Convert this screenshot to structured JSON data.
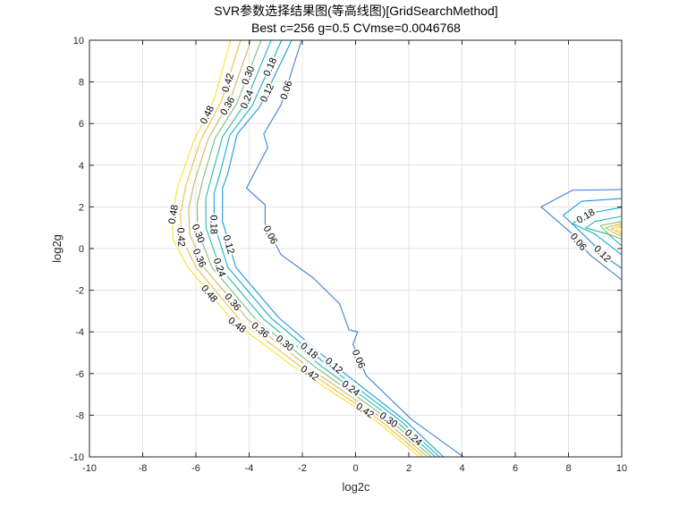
{
  "chart_data": {
    "type": "contour",
    "title": "SVR参数选择结果图(等高线图)[GridSearchMethod]",
    "subtitle": "Best c=256 g=0.5 CVmse=0.0046768",
    "xlabel": "log2c",
    "ylabel": "log2g",
    "xlim": [
      -10,
      10
    ],
    "ylim": [
      -10,
      10
    ],
    "xticks": [
      -10,
      -8,
      -6,
      -4,
      -2,
      0,
      2,
      4,
      6,
      8,
      10
    ],
    "yticks": [
      -10,
      -8,
      -6,
      -4,
      -2,
      0,
      2,
      4,
      6,
      8,
      10
    ],
    "grid": true,
    "colormap": "parula",
    "levels": [
      {
        "value": "0.06",
        "color": "#3d7fd6",
        "paths": [
          [
            [
              -2.03,
              10
            ],
            [
              -2.8,
              6.9
            ],
            [
              -3.45,
              5.5
            ],
            [
              -3.3,
              4.85
            ],
            [
              -4.1,
              2.9
            ],
            [
              -3.4,
              2.1
            ],
            [
              -3.4,
              1.2
            ],
            [
              -2.8,
              -0.3
            ],
            [
              -1.6,
              -1.4
            ],
            [
              -0.6,
              -2.65
            ],
            [
              -0.25,
              -3.9
            ],
            [
              0.08,
              -4.0
            ],
            [
              -0.1,
              -4.6
            ],
            [
              0.4,
              -6.1
            ],
            [
              2.1,
              -8.2
            ],
            [
              4.05,
              -10
            ]
          ],
          [
            [
              10,
              2.83
            ],
            [
              8.15,
              2.8
            ],
            [
              6.97,
              2.0
            ],
            [
              8.15,
              0.7
            ],
            [
              8.8,
              -0.3
            ],
            [
              10,
              -1.5
            ]
          ]
        ]
      },
      {
        "value": "0.12",
        "color": "#1f95de",
        "paths": [
          [
            [
              -2.4,
              10
            ],
            [
              -3.6,
              6.8
            ],
            [
              -4.45,
              5.5
            ],
            [
              -4.8,
              3.6
            ],
            [
              -5.0,
              2.9
            ],
            [
              -5.0,
              1.3
            ],
            [
              -4.5,
              -0.9
            ],
            [
              -2.9,
              -3.3
            ],
            [
              -0.8,
              -5.6
            ],
            [
              1.9,
              -8.3
            ],
            [
              3.3,
              -10
            ]
          ],
          [
            [
              10,
              2.4
            ],
            [
              8.5,
              2.27
            ],
            [
              7.8,
              1.6
            ],
            [
              8.65,
              0.56
            ],
            [
              9.5,
              -0.5
            ],
            [
              10,
              -0.95
            ]
          ]
        ]
      },
      {
        "value": "0.18",
        "color": "#12aed0",
        "paths": [
          [
            [
              -2.78,
              10
            ],
            [
              -3.88,
              6.87
            ],
            [
              -4.73,
              5.43
            ],
            [
              -5.12,
              3.48
            ],
            [
              -5.32,
              2.65
            ],
            [
              -5.31,
              1.15
            ],
            [
              -4.8,
              -0.9
            ],
            [
              -3.18,
              -3.33
            ],
            [
              -1.05,
              -5.62
            ],
            [
              1.71,
              -8.29
            ],
            [
              3.15,
              -10
            ]
          ],
          [
            [
              10,
              1.97
            ],
            [
              8.8,
              1.7
            ],
            [
              8.15,
              1.2
            ],
            [
              9.0,
              0.69
            ],
            [
              10,
              -0.3
            ]
          ]
        ]
      },
      {
        "value": "0.24",
        "color": "#27b9a8",
        "paths": [
          [
            [
              -3.17,
              10
            ],
            [
              -4.17,
              6.93
            ],
            [
              -5.0,
              5.37
            ],
            [
              -5.43,
              3.37
            ],
            [
              -5.63,
              2.4
            ],
            [
              -5.62,
              1.0
            ],
            [
              -5.1,
              -0.9
            ],
            [
              -3.47,
              -3.37
            ],
            [
              -1.3,
              -5.63
            ],
            [
              1.52,
              -8.28
            ],
            [
              3.0,
              -10
            ]
          ],
          [
            [
              10,
              1.55
            ],
            [
              9.0,
              1.3
            ],
            [
              8.65,
              0.99
            ],
            [
              9.5,
              0.69
            ],
            [
              10,
              0.13
            ]
          ]
        ]
      },
      {
        "value": "0.30",
        "color": "#7bbf78",
        "paths": [
          [
            [
              -3.55,
              10
            ],
            [
              -4.45,
              7.0
            ],
            [
              -5.28,
              5.3
            ],
            [
              -5.75,
              3.25
            ],
            [
              -5.95,
              2.15
            ],
            [
              -5.93,
              0.85
            ],
            [
              -5.4,
              -0.9
            ],
            [
              -3.75,
              -3.4
            ],
            [
              -1.55,
              -5.65
            ],
            [
              1.33,
              -8.28
            ],
            [
              2.85,
              -10
            ]
          ],
          [
            [
              10,
              1.3
            ],
            [
              9.2,
              1.1
            ],
            [
              9.5,
              0.7
            ],
            [
              10,
              0.45
            ]
          ]
        ]
      },
      {
        "value": "0.36",
        "color": "#c4ba5f",
        "paths": [
          [
            [
              -3.93,
              10
            ],
            [
              -4.73,
              7.07
            ],
            [
              -5.55,
              5.23
            ],
            [
              -6.07,
              3.13
            ],
            [
              -6.27,
              1.9
            ],
            [
              -6.23,
              0.7
            ],
            [
              -5.7,
              -0.9
            ],
            [
              -4.03,
              -3.43
            ],
            [
              -1.8,
              -5.67
            ],
            [
              1.13,
              -8.27
            ],
            [
              2.7,
              -10
            ]
          ],
          [
            [
              10,
              1.2
            ],
            [
              9.4,
              1.0
            ],
            [
              9.7,
              0.75
            ],
            [
              10,
              0.6
            ]
          ]
        ]
      },
      {
        "value": "0.42",
        "color": "#f2bb45",
        "paths": [
          [
            [
              -4.32,
              10
            ],
            [
              -5.02,
              7.13
            ],
            [
              -5.83,
              5.17
            ],
            [
              -6.38,
              3.02
            ],
            [
              -6.58,
              1.65
            ],
            [
              -6.54,
              0.55
            ],
            [
              -6.0,
              -0.9
            ],
            [
              -4.32,
              -3.47
            ],
            [
              -2.05,
              -5.68
            ],
            [
              0.94,
              -8.26
            ],
            [
              2.55,
              -10
            ]
          ],
          [
            [
              10,
              1.1
            ],
            [
              9.6,
              0.95
            ],
            [
              10,
              0.7
            ]
          ]
        ]
      },
      {
        "value": "0.48",
        "color": "#f6e12a",
        "paths": [
          [
            [
              -4.7,
              10
            ],
            [
              -5.3,
              7.2
            ],
            [
              -6.1,
              5.1
            ],
            [
              -6.7,
              2.9
            ],
            [
              -6.9,
              1.4
            ],
            [
              -6.85,
              0.4
            ],
            [
              -6.3,
              -0.9
            ],
            [
              -4.6,
              -3.5
            ],
            [
              -2.3,
              -5.7
            ],
            [
              0.75,
              -8.25
            ],
            [
              2.4,
              -10
            ]
          ],
          [
            [
              10,
              1.05
            ],
            [
              9.8,
              0.9
            ],
            [
              10,
              0.8
            ]
          ]
        ]
      }
    ],
    "labels": [
      {
        "level": 0,
        "x": -2.45,
        "y": 7.6
      },
      {
        "level": 1,
        "x": -3.1,
        "y": 7.9
      },
      {
        "level": 2,
        "x": -3.45,
        "y": 7.9
      },
      {
        "level": 3,
        "x": -3.8,
        "y": 7.9
      },
      {
        "level": 4,
        "x": -4.15,
        "y": 7.9
      },
      {
        "level": 5,
        "x": -4.45,
        "y": 7.9
      },
      {
        "level": 6,
        "x": -4.8,
        "y": 7.8
      },
      {
        "level": 7,
        "x": -5.2,
        "y": 7.7
      },
      {
        "level": 0,
        "x": -3.35,
        "y": 0.6
      },
      {
        "level": 1,
        "x": -4.9,
        "y": 0.2
      },
      {
        "level": 2,
        "x": -5.2,
        "y": 0.2
      },
      {
        "level": 3,
        "x": -5.5,
        "y": 0.2
      },
      {
        "level": 4,
        "x": -5.85,
        "y": 0.2
      },
      {
        "level": 5,
        "x": -6.15,
        "y": 0.2
      },
      {
        "level": 6,
        "x": -6.45,
        "y": 0.2
      },
      {
        "level": 7,
        "x": -6.75,
        "y": 0.1
      },
      {
        "level": 0,
        "x": -0.1,
        "y": -5.4
      },
      {
        "level": 1,
        "x": -0.8,
        "y": -5.6
      },
      {
        "level": 2,
        "x": -1.1,
        "y": -5.6
      },
      {
        "level": 3,
        "x": -1.35,
        "y": -5.6
      },
      {
        "level": 4,
        "x": -1.6,
        "y": -5.6
      },
      {
        "level": 5,
        "x": -1.85,
        "y": -5.6
      },
      {
        "level": 6,
        "x": -2.1,
        "y": -5.6
      },
      {
        "level": 7,
        "x": -2.35,
        "y": -5.6
      },
      {
        "level": 0,
        "x": 8.3,
        "y": 0.3
      },
      {
        "level": 1,
        "x": 8.7,
        "y": 0.5
      },
      {
        "level": 2,
        "x": 9.0,
        "y": 0.8
      },
      {
        "level": 3,
        "x": 9.3,
        "y": 0.9
      },
      {
        "level": 4,
        "x": 9.45,
        "y": 0.85
      },
      {
        "level": 5,
        "x": 9.6,
        "y": 0.8
      },
      {
        "level": 6,
        "x": 9.7,
        "y": 0.8
      },
      {
        "level": 7,
        "x": 9.85,
        "y": 0.85
      }
    ]
  }
}
